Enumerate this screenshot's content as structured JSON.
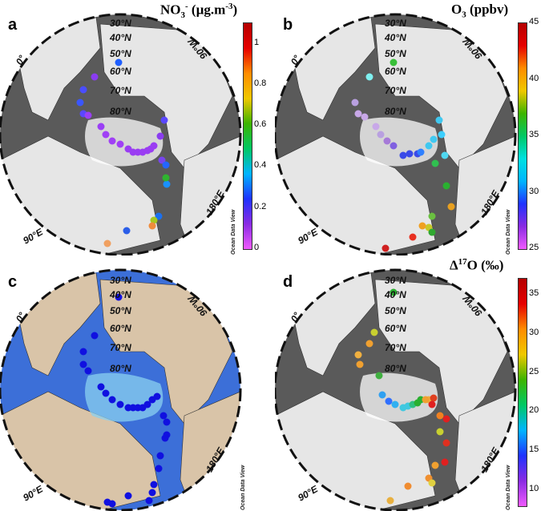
{
  "panels": [
    {
      "label": "a",
      "title_main": "NO",
      "title_sub": "3",
      "title_sup": "-",
      "title_unit": " (µg.m",
      "title_unit_sup": "-3",
      "title_close": ")",
      "style": "grey",
      "colorbar": {
        "ticks": [
          "1",
          "0.8",
          "0.6",
          "0.4",
          "0.2",
          "0"
        ],
        "min": 0,
        "max": 1.1,
        "colors": [
          "#ef5aff",
          "#8a2be2",
          "#1e32ff",
          "#00b4ff",
          "#00c864",
          "#3cb400",
          "#f0c800",
          "#ff8c00",
          "#e60000",
          "#b40000"
        ]
      },
      "points": [
        {
          "v": 0.2,
          "c": "#1f5fff"
        },
        {
          "v": 0.05,
          "c": "#8a3cf0"
        },
        {
          "v": 0.12,
          "c": "#4a4dff"
        },
        {
          "v": 0.12,
          "c": "#3a56ff"
        },
        {
          "v": 0.1,
          "c": "#5a47ff"
        },
        {
          "v": 0.05,
          "c": "#9b3ff5"
        },
        {
          "v": 0.05,
          "c": "#9b3ff5"
        },
        {
          "v": 0.05,
          "c": "#a040f5"
        },
        {
          "v": 0.05,
          "c": "#a040f5"
        },
        {
          "v": 0.05,
          "c": "#a040f5"
        },
        {
          "v": 0.05,
          "c": "#9a3df2"
        },
        {
          "v": 0.05,
          "c": "#9a3df2"
        },
        {
          "v": 0.05,
          "c": "#9a3df2"
        },
        {
          "v": 0.05,
          "c": "#9a3df2"
        },
        {
          "v": 0.05,
          "c": "#9a3df2"
        },
        {
          "v": 0.05,
          "c": "#9a3df2"
        },
        {
          "v": 0.05,
          "c": "#9a3df2"
        },
        {
          "v": 0.05,
          "c": "#8a3cf0"
        },
        {
          "v": 0.1,
          "c": "#5a47ff"
        },
        {
          "v": 0.08,
          "c": "#7744ee"
        },
        {
          "v": 0.2,
          "c": "#2466ff"
        },
        {
          "v": 0.25,
          "c": "#1a90ff"
        },
        {
          "v": 0.45,
          "c": "#2fb42f"
        },
        {
          "v": 0.3,
          "c": "#1a70f0"
        },
        {
          "v": 0.55,
          "c": "#a8c820"
        },
        {
          "v": 0.7,
          "c": "#f08c3c"
        },
        {
          "v": 0.3,
          "c": "#2b5ee8"
        },
        {
          "v": 0.75,
          "c": "#f0a060"
        }
      ]
    },
    {
      "label": "b",
      "title_main": "O",
      "title_sub": "3",
      "title_unit": " (ppbv)",
      "style": "grey",
      "colorbar": {
        "ticks": [
          "45",
          "40",
          "35",
          "30",
          "25"
        ],
        "min": 25,
        "max": 45,
        "colors": [
          "#ef5aff",
          "#8a2be2",
          "#1e32ff",
          "#00b4ff",
          "#00e0e0",
          "#00c864",
          "#3cb400",
          "#f0c800",
          "#ff8c00",
          "#e60000",
          "#b40000"
        ]
      },
      "points": [
        {
          "v": 36,
          "c": "#38c038"
        },
        {
          "v": 31,
          "c": "#7ff0f0"
        },
        {
          "v": 27,
          "c": "#b9a0e0"
        },
        {
          "v": 27,
          "c": "#c8a8e8"
        },
        {
          "v": 27,
          "c": "#c8a8e8"
        },
        {
          "v": 27,
          "c": "#c8a8e8"
        },
        {
          "v": 27,
          "c": "#b9a0e0"
        },
        {
          "v": 28,
          "c": "#a67ad8"
        },
        {
          "v": 29,
          "c": "#8060e0"
        },
        {
          "v": 29,
          "c": "#3a4ae8"
        },
        {
          "v": 29,
          "c": "#3a4ae8"
        },
        {
          "v": 29,
          "c": "#3a4ae8"
        },
        {
          "v": 30,
          "c": "#2f80ff"
        },
        {
          "v": 31,
          "c": "#40c8f0"
        },
        {
          "v": 31,
          "c": "#40c8f0"
        },
        {
          "v": 31,
          "c": "#40c8f0"
        },
        {
          "v": 31,
          "c": "#3ccfff"
        },
        {
          "v": 31,
          "c": "#50d8f0"
        },
        {
          "v": 34,
          "c": "#30c050"
        },
        {
          "v": 35,
          "c": "#2ab030"
        },
        {
          "v": 38,
          "c": "#e8a020"
        },
        {
          "v": 36,
          "c": "#6ac040"
        },
        {
          "v": 37,
          "c": "#c8c828"
        },
        {
          "v": 38,
          "c": "#f0a020"
        },
        {
          "v": 41,
          "c": "#e83020"
        },
        {
          "v": 35,
          "c": "#30a830"
        },
        {
          "v": 44,
          "c": "#d02020"
        }
      ]
    },
    {
      "label": "c",
      "style": "bathy",
      "points": []
    },
    {
      "label": "d",
      "title_main": "Δ",
      "title_sup": "17",
      "title_unit": "O (‰)",
      "style": "grey",
      "colorbar": {
        "ticks": [
          "35",
          "30",
          "25",
          "20",
          "15",
          "10"
        ],
        "min": 8,
        "max": 37,
        "colors": [
          "#ef5aff",
          "#8a2be2",
          "#1e32ff",
          "#00b4ff",
          "#00c864",
          "#3cb400",
          "#f0c800",
          "#ff8c00",
          "#e60000",
          "#b40000"
        ]
      },
      "points": [
        {
          "v": 20,
          "c": "#2ab030"
        },
        {
          "v": 24,
          "c": "#c8d030"
        },
        {
          "v": 27,
          "c": "#f0a030"
        },
        {
          "v": 26,
          "c": "#f0b040"
        },
        {
          "v": 27,
          "c": "#f0a030"
        },
        {
          "v": 21,
          "c": "#40b040"
        },
        {
          "v": 15,
          "c": "#30a0f0"
        },
        {
          "v": 14,
          "c": "#3070ff"
        },
        {
          "v": 16,
          "c": "#30b0f0"
        },
        {
          "v": 17,
          "c": "#40c8e0"
        },
        {
          "v": 17,
          "c": "#40c8e0"
        },
        {
          "v": 18,
          "c": "#30c080"
        },
        {
          "v": 20,
          "c": "#2ab030"
        },
        {
          "v": 21,
          "c": "#2ab030"
        },
        {
          "v": 26,
          "c": "#f0b040"
        },
        {
          "v": 32,
          "c": "#e04020"
        },
        {
          "v": 33,
          "c": "#e02020"
        },
        {
          "v": 27,
          "c": "#f0a030"
        },
        {
          "v": 29,
          "c": "#f08020"
        },
        {
          "v": 33,
          "c": "#e02020"
        },
        {
          "v": 24,
          "c": "#c8d030"
        },
        {
          "v": 32,
          "c": "#e03020"
        },
        {
          "v": 33,
          "c": "#e02020"
        },
        {
          "v": 27,
          "c": "#f0a030"
        },
        {
          "v": 28,
          "c": "#f09030"
        },
        {
          "v": 25,
          "c": "#e0d040"
        },
        {
          "v": 28,
          "c": "#f08c30"
        },
        {
          "v": 26,
          "c": "#e8b040"
        }
      ]
    }
  ],
  "lat_labels": [
    "30°N",
    "40°N",
    "50°N",
    "60°N",
    "70°N",
    "80°N"
  ],
  "lon_labels": {
    "zero": "0°",
    "e90": "90°E",
    "w90": "90°W",
    "e180": "180°E"
  },
  "watermark": "Ocean Data View"
}
